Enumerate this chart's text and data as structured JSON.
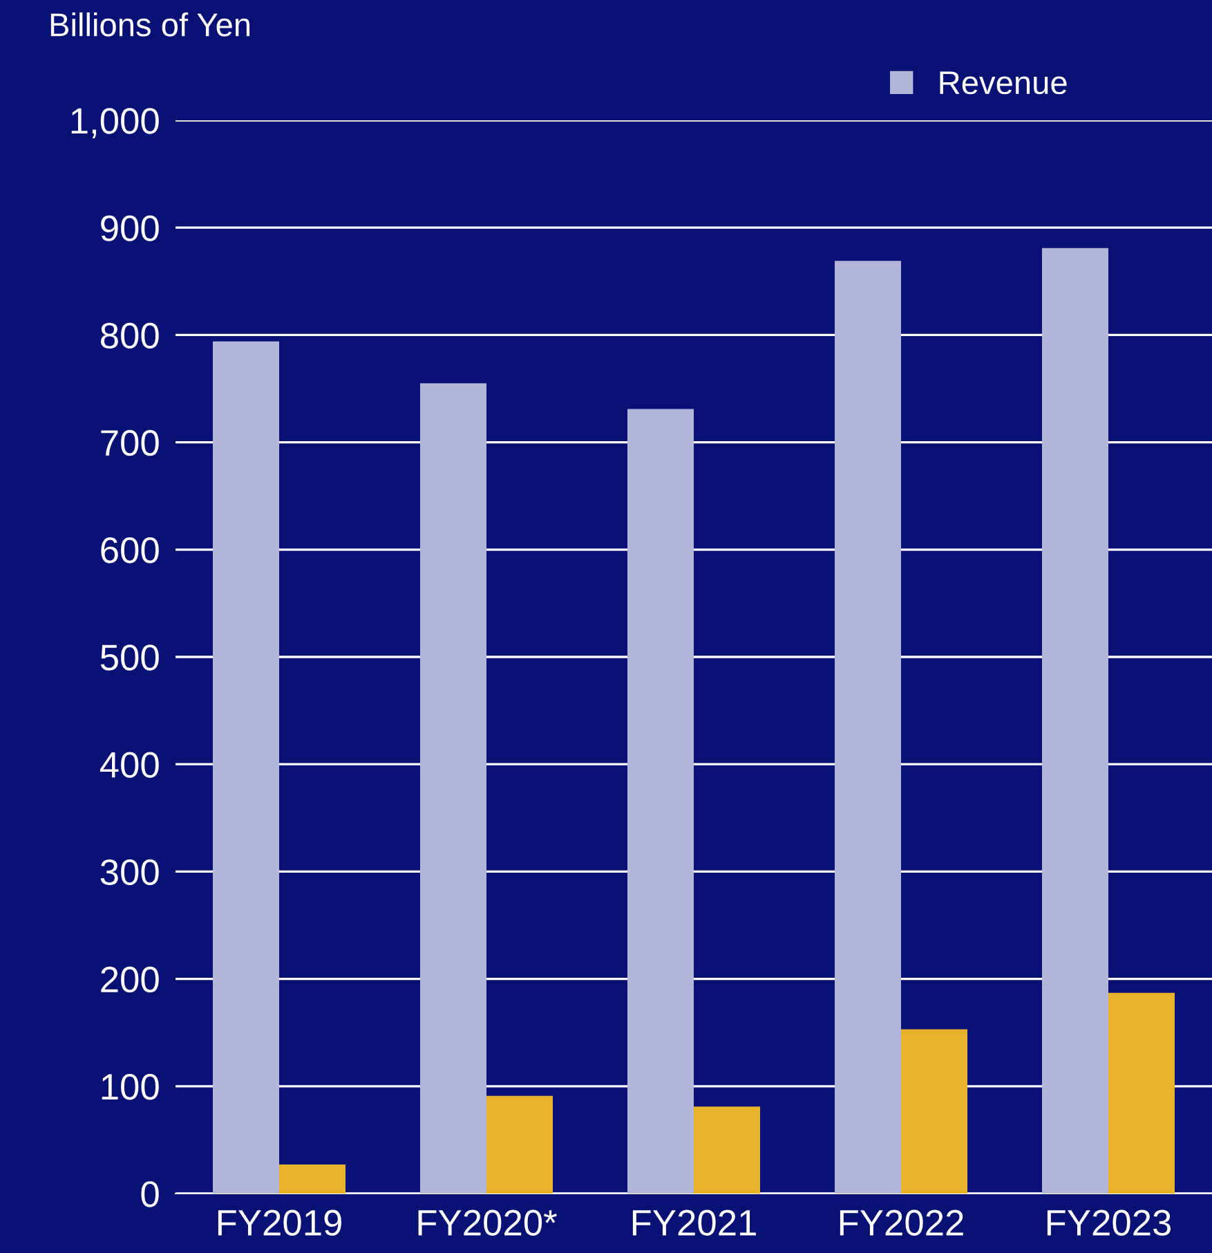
{
  "chart_data": {
    "type": "bar",
    "ylabel": "Billions of Yen",
    "categories": [
      "FY2019",
      "FY2020*",
      "FY2021",
      "FY2022",
      "FY2023"
    ],
    "series": [
      {
        "name": "Revenue",
        "color": "#b3b6d9",
        "values": [
          794,
          755,
          731,
          869,
          881
        ]
      },
      {
        "color": "#e8b22a",
        "values": [
          27,
          91,
          81,
          153,
          187
        ]
      }
    ],
    "ylim": [
      0,
      1000
    ],
    "yticks": [
      0,
      100,
      200,
      300,
      400,
      500,
      600,
      700,
      800,
      900,
      {
        "value": 1000,
        "label": "1,000"
      }
    ],
    "grid": "y",
    "legend": "top right"
  }
}
